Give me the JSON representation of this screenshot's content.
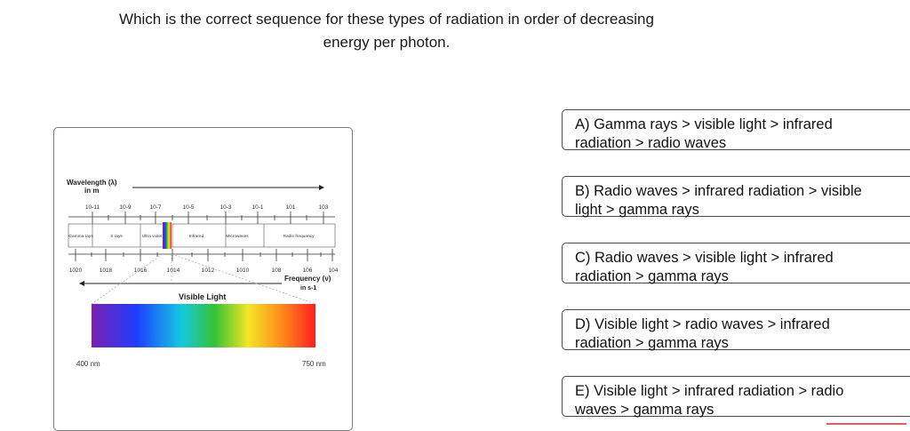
{
  "question": {
    "line1": "Which is the correct sequence for these types of radiation in order of decreasing",
    "line2": "energy per photon."
  },
  "figure": {
    "wavelength_label": "Wavelength (λ)",
    "wavelength_unit": "in m",
    "wavelength_ticks": [
      "10-11",
      "10-9",
      "10-7",
      "10-5",
      "10-3",
      "10-1",
      "101",
      "103"
    ],
    "regions": [
      "Gamma rays",
      "X rays",
      "Ultra violet",
      "Infrared",
      "Microwaves",
      "Radio frequency"
    ],
    "frequency_ticks": [
      "1020",
      "1018",
      "1016",
      "1014",
      "1012",
      "1010",
      "108",
      "106",
      "104"
    ],
    "frequency_label": "Frequency (ν)",
    "frequency_unit": "in s-1",
    "visible_label": "Visible Light",
    "visible_min": "400 nm",
    "visible_max": "750 nm"
  },
  "options": [
    {
      "line1": "A) Gamma rays > visible light > infrared",
      "line2": "radiation > radio waves"
    },
    {
      "line1": "B) Radio waves > infrared radiation > visible",
      "line2": "light > gamma rays"
    },
    {
      "line1": "C) Radio waves > visible light > infrared",
      "line2": "radiation > gamma rays"
    },
    {
      "line1": "D) Visible light > radio waves > infrared",
      "line2": "radiation > gamma rays"
    },
    {
      "line1": "E) Visible light > infrared radiation > radio",
      "line2": "waves > gamma rays"
    }
  ]
}
